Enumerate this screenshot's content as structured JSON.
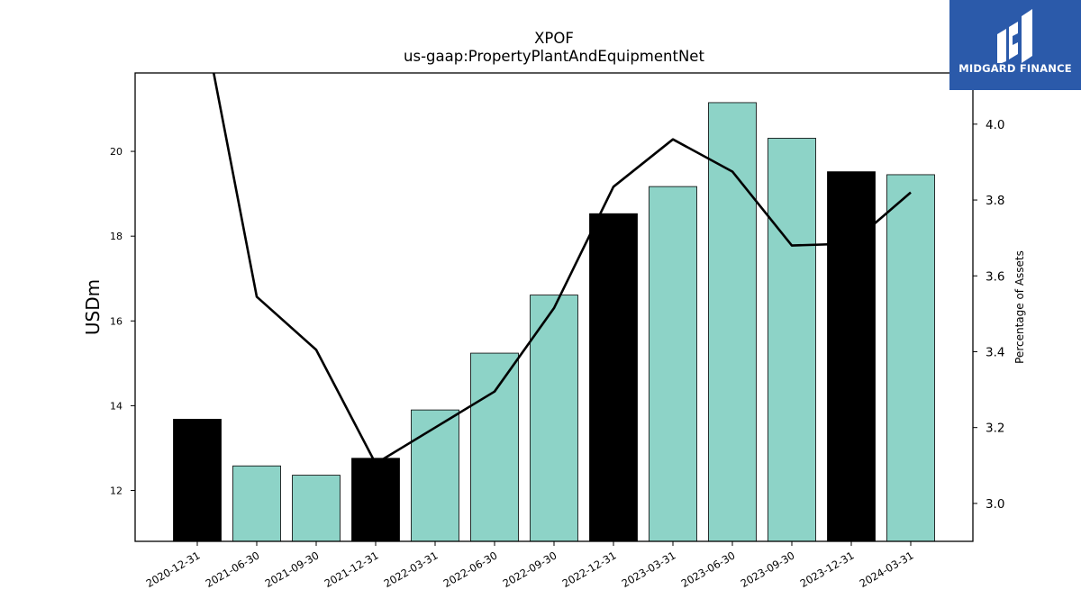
{
  "chart_data": {
    "type": "bar",
    "title": "XPOF",
    "subtitle": "us-gaap:PropertyPlantAndEquipmentNet",
    "ylabel": "USDm",
    "y2label": "Percentage of Assets",
    "categories": [
      "2020-12-31",
      "2021-06-30",
      "2021-09-30",
      "2021-12-31",
      "2022-03-31",
      "2022-06-30",
      "2022-09-30",
      "2022-12-31",
      "2023-03-31",
      "2023-06-30",
      "2023-09-30",
      "2023-12-31",
      "2024-03-31"
    ],
    "series": [
      {
        "type": "bar",
        "axis": "left",
        "values": [
          13.68,
          12.58,
          12.36,
          12.76,
          13.9,
          15.24,
          16.61,
          18.53,
          19.17,
          21.15,
          20.31,
          19.52,
          19.45
        ],
        "colors": [
          "#000000",
          "#8dd3c7",
          "#8dd3c7",
          "#000000",
          "#8dd3c7",
          "#8dd3c7",
          "#8dd3c7",
          "#000000",
          "#8dd3c7",
          "#8dd3c7",
          "#8dd3c7",
          "#000000",
          "#8dd3c7"
        ]
      },
      {
        "type": "line",
        "axis": "right",
        "color": "#000000",
        "values": [
          4.36,
          3.545,
          3.405,
          3.105,
          3.2,
          3.295,
          3.515,
          3.835,
          3.96,
          3.875,
          3.68,
          3.685,
          3.82
        ]
      }
    ],
    "ylim": [
      10.8,
      21.85
    ],
    "yticks": [
      12,
      14,
      16,
      18,
      20
    ],
    "y2lim": [
      2.9,
      4.135
    ],
    "y2ticks": [
      3.0,
      3.2,
      3.4,
      3.6,
      3.8,
      4.0
    ],
    "grid": false,
    "legend": "none"
  },
  "logo": {
    "text": "MIDGARD FINANCE",
    "bg_color": "#2b5aaa"
  }
}
